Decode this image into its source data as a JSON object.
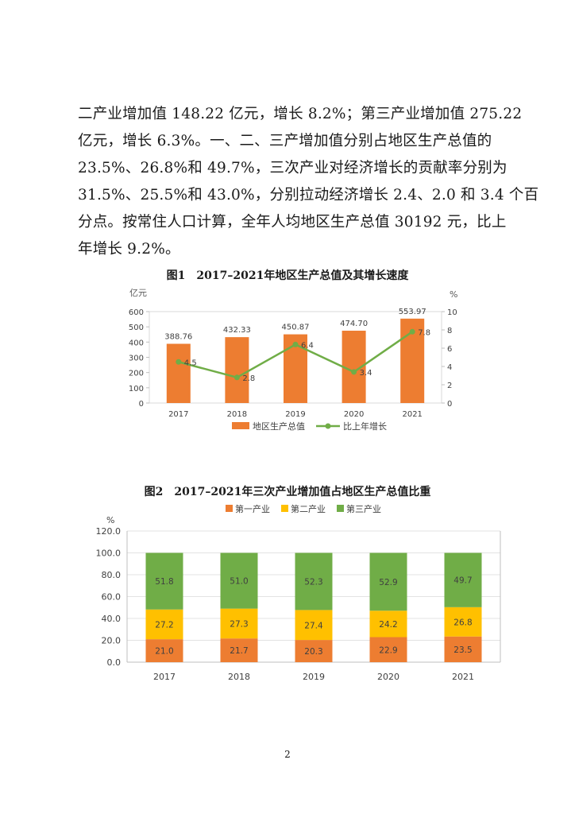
{
  "body_lines": [
    "二产业增加值 148.22 亿元，增长 8.2%；第三产业增加值 275.22",
    "亿元，增长 6.3%。一、二、三产增加值分别占地区生产总值的",
    "23.5%、26.8%和 49.7%，三次产业对经济增长的贡献率分别为",
    "31.5%、25.5%和 43.0%，分别拉动经济增长 2.4、2.0 和 3.4 个百",
    "分点。按常住人口计算，全年人均地区生产总值 30192 元，比上",
    "年增长 9.2%。"
  ],
  "figure1_title": "图1　2017–2021年地区生产总值及其增长速度",
  "figure2_title": "图2　2017–2021年三次产业增加值占地区生产总值比重",
  "page_number": "2",
  "chart_data": [
    {
      "type": "bar",
      "title": "图1　2017–2021年地区生产总值及其增长速度",
      "categories": [
        "2017",
        "2018",
        "2019",
        "2020",
        "2021"
      ],
      "left_unit": "亿元",
      "right_unit": "%",
      "ylim": [
        0,
        600
      ],
      "y2lim": [
        0,
        10
      ],
      "yticks": [
        "0",
        "100",
        "200",
        "300",
        "400",
        "500",
        "600"
      ],
      "y2ticks": [
        "0",
        "2",
        "4",
        "6",
        "8",
        "10"
      ],
      "legend_position": "bottom",
      "series": [
        {
          "name": "地区生产总值",
          "type": "bar",
          "axis": "left",
          "color": "#ED7D31",
          "values": [
            388.76,
            432.33,
            450.87,
            474.7,
            553.97
          ],
          "labels": [
            "388.76",
            "432.33",
            "450.87",
            "474.70",
            "553.97"
          ]
        },
        {
          "name": "比上年增长",
          "type": "line",
          "axis": "right",
          "color": "#70AD47",
          "values": [
            4.5,
            2.8,
            6.4,
            3.4,
            7.8
          ],
          "labels": [
            "4.5",
            "2.8",
            "6.4",
            "3.4",
            "7.8"
          ]
        }
      ]
    },
    {
      "type": "bar",
      "stacked": true,
      "title": "图2　2017–2021年三次产业增加值占地区生产总值比重",
      "categories": [
        "2017",
        "2018",
        "2019",
        "2020",
        "2021"
      ],
      "unit": "%",
      "ylim": [
        0,
        120
      ],
      "yticks": [
        "0.0",
        "20.0",
        "40.0",
        "60.0",
        "80.0",
        "100.0",
        "120.0"
      ],
      "legend_position": "top",
      "series": [
        {
          "name": "第一产业",
          "color": "#ED7D31",
          "values": [
            21.0,
            21.7,
            20.3,
            22.9,
            23.5
          ],
          "labels": [
            "21.0",
            "21.7",
            "20.3",
            "22.9",
            "23.5"
          ]
        },
        {
          "name": "第二产业",
          "color": "#FFC000",
          "values": [
            27.2,
            27.3,
            27.4,
            24.2,
            26.8
          ],
          "labels": [
            "27.2",
            "27.3",
            "27.4",
            "24.2",
            "26.8"
          ]
        },
        {
          "name": "第三产业",
          "color": "#70AD47",
          "values": [
            51.8,
            51.0,
            52.3,
            52.9,
            49.7
          ],
          "labels": [
            "51.8",
            "51.0",
            "52.3",
            "52.9",
            "49.7"
          ]
        }
      ]
    }
  ]
}
